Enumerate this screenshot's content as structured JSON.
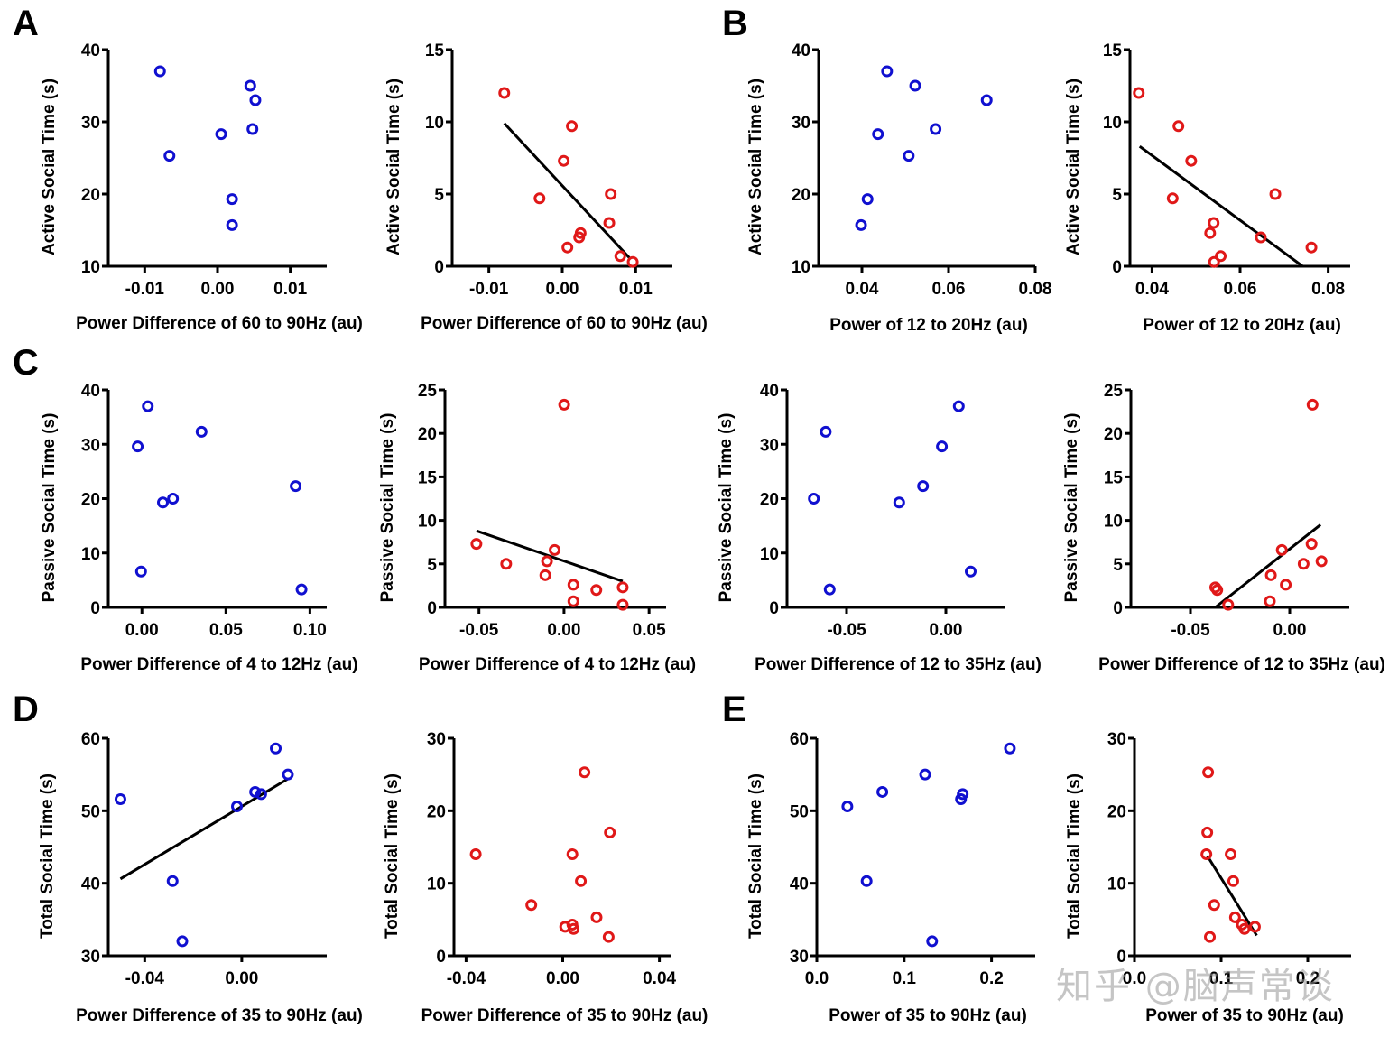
{
  "figure": {
    "panel_letters": [
      "A",
      "B",
      "C",
      "D",
      "E"
    ],
    "watermark": "知乎 @脑声常谈",
    "colors": {
      "blue": "#1010d0",
      "red": "#e01818",
      "axis": "#000000",
      "fit": "#000000"
    }
  },
  "chart_data": [
    {
      "id": "A1",
      "panel": "A",
      "type": "scatter",
      "color": "blue",
      "xlabel": "Power Difference of 60 to 90Hz (au)",
      "ylabel": "Active Social Time (s)",
      "xlim": [
        -0.015,
        0.015
      ],
      "ylim": [
        10,
        40
      ],
      "xticks": [
        -0.01,
        0.0,
        0.01
      ],
      "xtick_labels": [
        "-0.01",
        "0.00",
        "0.01"
      ],
      "yticks": [
        10,
        20,
        30,
        40
      ],
      "ytick_labels": [
        "10",
        "20",
        "30",
        "40"
      ],
      "points": [
        [
          -0.0079,
          37.0
        ],
        [
          -0.0066,
          25.3
        ],
        [
          0.0005,
          28.3
        ],
        [
          0.002,
          19.3
        ],
        [
          0.002,
          15.7
        ],
        [
          0.0045,
          35.0
        ],
        [
          0.0052,
          33.0
        ],
        [
          0.0048,
          29.0
        ]
      ],
      "fit": null
    },
    {
      "id": "A2",
      "panel": "A",
      "type": "scatter",
      "color": "red",
      "xlabel": "Power Difference of 60 to 90Hz (au)",
      "ylabel": "Active Social Time (s)",
      "xlim": [
        -0.015,
        0.015
      ],
      "ylim": [
        0,
        15
      ],
      "xticks": [
        -0.01,
        0.0,
        0.01
      ],
      "xtick_labels": [
        "-0.01",
        "0.00",
        "0.01"
      ],
      "yticks": [
        0,
        5,
        10,
        15
      ],
      "ytick_labels": [
        "0",
        "5",
        "10",
        "15"
      ],
      "points": [
        [
          -0.0079,
          12.0
        ],
        [
          0.0013,
          9.7
        ],
        [
          0.0002,
          7.3
        ],
        [
          -0.0031,
          4.7
        ],
        [
          0.0066,
          5.0
        ],
        [
          0.0064,
          3.0
        ],
        [
          0.0025,
          2.3
        ],
        [
          0.0023,
          2.0
        ],
        [
          0.0007,
          1.3
        ],
        [
          0.0079,
          0.7
        ],
        [
          0.0096,
          0.3
        ]
      ],
      "fit": [
        [
          -0.0079,
          9.9
        ],
        [
          0.0093,
          0.5
        ]
      ]
    },
    {
      "id": "B1",
      "panel": "B",
      "type": "scatter",
      "color": "blue",
      "xlabel": "Power of 12 to 20Hz (au)",
      "ylabel": "Active Social Time (s)",
      "xlim": [
        0.03,
        0.08
      ],
      "ylim": [
        10,
        40
      ],
      "xticks": [
        0.04,
        0.06,
        0.08
      ],
      "xtick_labels": [
        "0.04",
        "0.06",
        "0.08"
      ],
      "yticks": [
        10,
        20,
        30,
        40
      ],
      "ytick_labels": [
        "10",
        "20",
        "30",
        "40"
      ],
      "points": [
        [
          0.0398,
          15.7
        ],
        [
          0.0413,
          19.3
        ],
        [
          0.0437,
          28.3
        ],
        [
          0.0458,
          37.0
        ],
        [
          0.0508,
          25.3
        ],
        [
          0.0523,
          35.0
        ],
        [
          0.057,
          29.0
        ],
        [
          0.0688,
          33.0
        ]
      ],
      "fit": null
    },
    {
      "id": "B2",
      "panel": "B",
      "type": "scatter",
      "color": "red",
      "xlabel": "Power of 12 to 20Hz (au)",
      "ylabel": "Active Social Time (s)",
      "xlim": [
        0.035,
        0.085
      ],
      "ylim": [
        0,
        15
      ],
      "xticks": [
        0.04,
        0.06,
        0.08
      ],
      "xtick_labels": [
        "0.04",
        "0.06",
        "0.08"
      ],
      "yticks": [
        0,
        5,
        10,
        15
      ],
      "ytick_labels": [
        "0",
        "5",
        "10",
        "15"
      ],
      "points": [
        [
          0.037,
          12.0
        ],
        [
          0.046,
          9.7
        ],
        [
          0.0489,
          7.3
        ],
        [
          0.0447,
          4.7
        ],
        [
          0.068,
          5.0
        ],
        [
          0.054,
          3.0
        ],
        [
          0.0532,
          2.3
        ],
        [
          0.0647,
          2.0
        ],
        [
          0.0762,
          1.3
        ],
        [
          0.0556,
          0.7
        ],
        [
          0.0541,
          0.3
        ]
      ],
      "fit": [
        [
          0.0372,
          8.3
        ],
        [
          0.0742,
          0.0
        ]
      ]
    },
    {
      "id": "C1",
      "panel": "C",
      "type": "scatter",
      "color": "blue",
      "xlabel": "Power Difference of 4 to 12Hz (au)",
      "ylabel": "Passive Social Time (s)",
      "xlim": [
        -0.02,
        0.11
      ],
      "ylim": [
        0,
        40
      ],
      "xticks": [
        0.0,
        0.05,
        0.1
      ],
      "xtick_labels": [
        "0.00",
        "0.05",
        "0.10"
      ],
      "yticks": [
        0,
        10,
        20,
        30,
        40
      ],
      "ytick_labels": [
        "0",
        "10",
        "20",
        "30",
        "40"
      ],
      "points": [
        [
          0.0035,
          37.0
        ],
        [
          -0.0025,
          29.6
        ],
        [
          0.0355,
          32.3
        ],
        [
          0.0125,
          19.3
        ],
        [
          0.0185,
          20.0
        ],
        [
          0.0915,
          22.3
        ],
        [
          -0.0005,
          6.6
        ],
        [
          0.095,
          3.3
        ]
      ],
      "fit": null
    },
    {
      "id": "C2",
      "panel": "C",
      "type": "scatter",
      "color": "red",
      "xlabel": "Power Difference of 4 to 12Hz (au)",
      "ylabel": "Passive Social Time (s)",
      "xlim": [
        -0.07,
        0.06
      ],
      "ylim": [
        0,
        25
      ],
      "xticks": [
        -0.05,
        0.0,
        0.05
      ],
      "xtick_labels": [
        "-0.05",
        "0.00",
        "0.05"
      ],
      "yticks": [
        0,
        5,
        10,
        15,
        20,
        25
      ],
      "ytick_labels": [
        "0",
        "5",
        "10",
        "15",
        "20",
        "25"
      ],
      "points": [
        [
          0.0001,
          23.3
        ],
        [
          -0.0515,
          7.3
        ],
        [
          -0.034,
          5.0
        ],
        [
          -0.0055,
          6.6
        ],
        [
          -0.01,
          5.3
        ],
        [
          -0.011,
          3.7
        ],
        [
          0.0055,
          2.6
        ],
        [
          0.019,
          2.0
        ],
        [
          0.0345,
          2.3
        ],
        [
          0.0055,
          0.7
        ],
        [
          0.0345,
          0.3
        ]
      ],
      "fit": [
        [
          -0.0515,
          8.8
        ],
        [
          0.0345,
          3.0
        ]
      ]
    },
    {
      "id": "C3",
      "panel": "C",
      "type": "scatter",
      "color": "blue",
      "xlabel": "Power Difference of 12 to 35Hz (au)",
      "ylabel": "Passive Social Time (s)",
      "xlim": [
        -0.08,
        0.03
      ],
      "ylim": [
        0,
        40
      ],
      "xticks": [
        -0.05,
        0.0
      ],
      "xtick_labels": [
        "-0.05",
        "0.00"
      ],
      "yticks": [
        0,
        10,
        20,
        30,
        40
      ],
      "ytick_labels": [
        "0",
        "10",
        "20",
        "30",
        "40"
      ],
      "points": [
        [
          -0.0605,
          32.3
        ],
        [
          -0.0665,
          20.0
        ],
        [
          -0.0585,
          3.3
        ],
        [
          -0.0235,
          19.3
        ],
        [
          -0.0115,
          22.3
        ],
        [
          -0.002,
          29.6
        ],
        [
          0.0065,
          37.0
        ],
        [
          0.0125,
          6.6
        ]
      ],
      "fit": null
    },
    {
      "id": "C4",
      "panel": "C",
      "type": "scatter",
      "color": "red",
      "xlabel": "Power Difference of 12 to 35Hz (au)",
      "ylabel": "Passive Social Time (s)",
      "xlim": [
        -0.08,
        0.03
      ],
      "ylim": [
        0,
        25
      ],
      "xticks": [
        -0.05,
        0.0
      ],
      "xtick_labels": [
        "-0.05",
        "0.00"
      ],
      "yticks": [
        0,
        5,
        10,
        15,
        20,
        25
      ],
      "ytick_labels": [
        "0",
        "5",
        "10",
        "15",
        "20",
        "25"
      ],
      "points": [
        [
          0.0115,
          23.3
        ],
        [
          0.011,
          7.3
        ],
        [
          -0.004,
          6.6
        ],
        [
          0.007,
          5.0
        ],
        [
          0.016,
          5.3
        ],
        [
          -0.0095,
          3.7
        ],
        [
          -0.002,
          2.6
        ],
        [
          -0.0375,
          2.3
        ],
        [
          -0.0365,
          2.0
        ],
        [
          -0.01,
          0.7
        ],
        [
          -0.031,
          0.3
        ]
      ],
      "fit": [
        [
          -0.0375,
          0.0
        ],
        [
          0.0155,
          9.5
        ]
      ]
    },
    {
      "id": "D1",
      "panel": "D",
      "type": "scatter",
      "color": "blue",
      "xlabel": "Power Difference of 35 to 90Hz (au)",
      "ylabel": "Total Social Time (s)",
      "xlim": [
        -0.055,
        0.035
      ],
      "ylim": [
        30,
        60
      ],
      "xticks": [
        -0.04,
        0.0
      ],
      "xtick_labels": [
        "-0.04",
        "0.00"
      ],
      "yticks": [
        30,
        40,
        50,
        60
      ],
      "ytick_labels": [
        "30",
        "40",
        "50",
        "60"
      ],
      "points": [
        [
          -0.05,
          51.6
        ],
        [
          -0.0285,
          40.3
        ],
        [
          -0.0245,
          32.0
        ],
        [
          -0.002,
          50.6
        ],
        [
          0.0055,
          52.6
        ],
        [
          0.008,
          52.3
        ],
        [
          0.014,
          58.6
        ],
        [
          0.019,
          55.0
        ]
      ],
      "fit": [
        [
          -0.05,
          40.6
        ],
        [
          0.019,
          54.4
        ]
      ]
    },
    {
      "id": "D2",
      "panel": "D",
      "type": "scatter",
      "color": "red",
      "xlabel": "Power Difference of 35 to 90Hz (au)",
      "ylabel": "Total Social Time (s)",
      "xlim": [
        -0.045,
        0.045
      ],
      "ylim": [
        0,
        30
      ],
      "xticks": [
        -0.04,
        0.0,
        0.04
      ],
      "xtick_labels": [
        "-0.04",
        "0.00",
        "0.04"
      ],
      "yticks": [
        0,
        10,
        20,
        30
      ],
      "ytick_labels": [
        "0",
        "10",
        "20",
        "30"
      ],
      "points": [
        [
          -0.036,
          14.0
        ],
        [
          0.009,
          25.3
        ],
        [
          0.0195,
          17.0
        ],
        [
          0.004,
          14.0
        ],
        [
          0.0075,
          10.3
        ],
        [
          -0.013,
          7.0
        ],
        [
          0.014,
          5.3
        ],
        [
          0.001,
          4.0
        ],
        [
          0.004,
          4.3
        ],
        [
          0.0045,
          3.7
        ],
        [
          0.019,
          2.6
        ]
      ],
      "fit": null
    },
    {
      "id": "E1",
      "panel": "E",
      "type": "scatter",
      "color": "blue",
      "xlabel": "Power of 35 to 90Hz (au)",
      "ylabel": "Total Social Time (s)",
      "xlim": [
        0.0,
        0.25
      ],
      "ylim": [
        30,
        60
      ],
      "xticks": [
        0.0,
        0.1,
        0.2
      ],
      "xtick_labels": [
        "0.0",
        "0.1",
        "0.2"
      ],
      "yticks": [
        30,
        40,
        50,
        60
      ],
      "ytick_labels": [
        "30",
        "40",
        "50",
        "60"
      ],
      "points": [
        [
          0.035,
          50.6
        ],
        [
          0.057,
          40.3
        ],
        [
          0.075,
          52.6
        ],
        [
          0.124,
          55.0
        ],
        [
          0.132,
          32.0
        ],
        [
          0.165,
          51.6
        ],
        [
          0.167,
          52.3
        ],
        [
          0.221,
          58.6
        ]
      ],
      "fit": null
    },
    {
      "id": "E2",
      "panel": "E",
      "type": "scatter",
      "color": "red",
      "xlabel": "Power of 35 to 90Hz (au)",
      "ylabel": "Total Social Time (s)",
      "xlim": [
        0.0,
        0.25
      ],
      "ylim": [
        0,
        30
      ],
      "xticks": [
        0.0,
        0.1,
        0.2
      ],
      "xtick_labels": [
        "0.0",
        "0.1",
        "0.2"
      ],
      "yticks": [
        0,
        10,
        20,
        30
      ],
      "ytick_labels": [
        "0",
        "10",
        "20",
        "30"
      ],
      "points": [
        [
          0.085,
          25.3
        ],
        [
          0.084,
          17.0
        ],
        [
          0.083,
          14.0
        ],
        [
          0.111,
          14.0
        ],
        [
          0.114,
          10.3
        ],
        [
          0.092,
          7.0
        ],
        [
          0.116,
          5.3
        ],
        [
          0.124,
          4.3
        ],
        [
          0.127,
          3.7
        ],
        [
          0.139,
          4.0
        ],
        [
          0.087,
          2.6
        ]
      ],
      "fit": [
        [
          0.084,
          13.8
        ],
        [
          0.141,
          2.8
        ]
      ]
    }
  ]
}
